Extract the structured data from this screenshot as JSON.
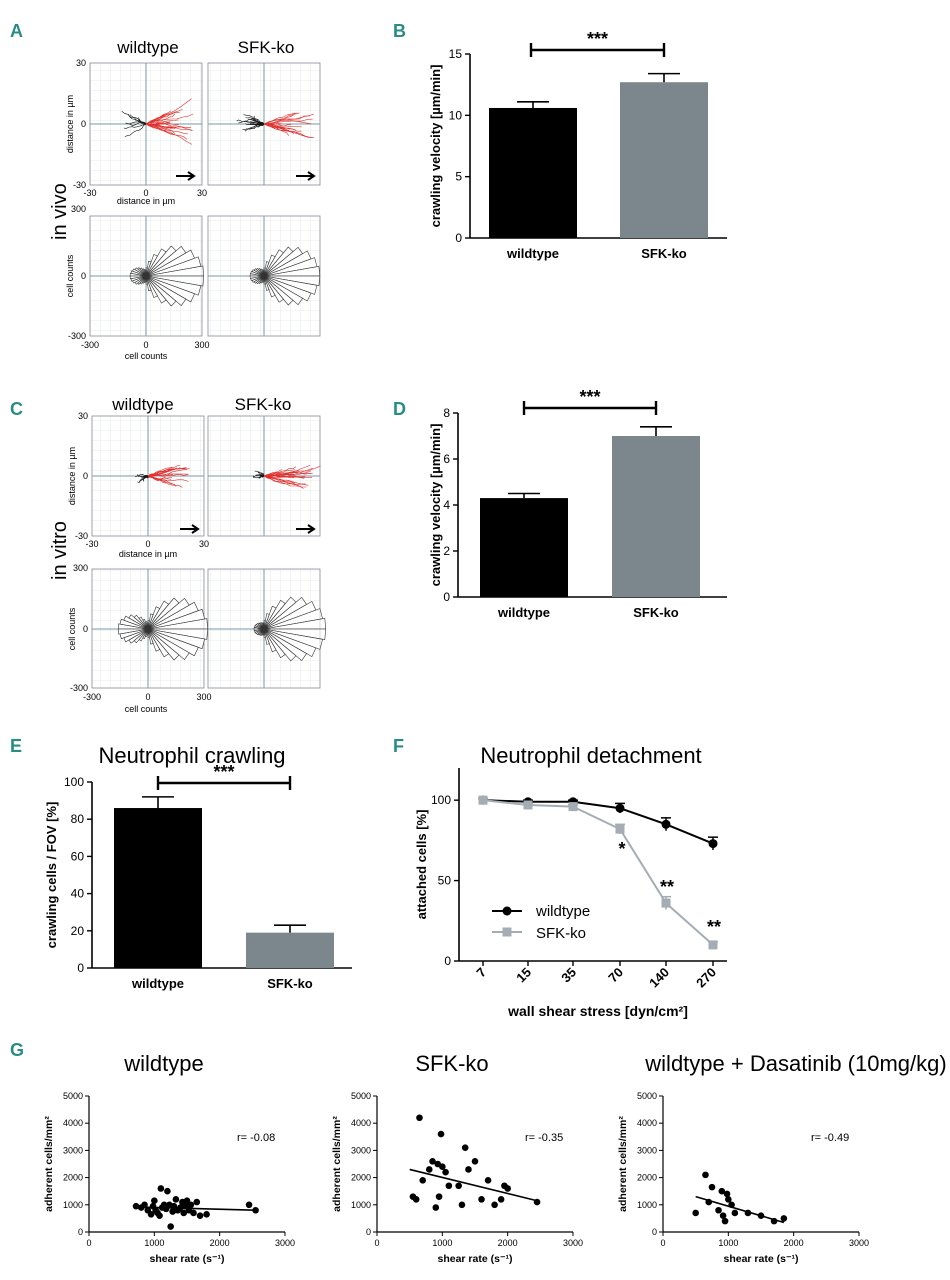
{
  "colors": {
    "wildtype": "#000000",
    "sfk": "#7b878c",
    "sfk_line": "#a4adb3",
    "red": "#e0312e",
    "teal": "#2a8c85",
    "grid": "#c8d2d2"
  },
  "panel_labels": {
    "A": "A",
    "B": "B",
    "C": "C",
    "D": "D",
    "E": "E",
    "F": "F",
    "G": "G"
  },
  "side_labels": {
    "in_vivo": "in vivo",
    "in_vitro": "in vitro"
  },
  "track_panels": {
    "col_titles": [
      "wildtype",
      "SFK-ko"
    ],
    "vivo_ticks": {
      "y_top": "30",
      "y_mid": "0",
      "y_bot": "-30",
      "x_left": "-30",
      "x_mid": "0",
      "x_right": "30"
    },
    "vivo_rose_ticks": {
      "y_top": "300",
      "y_mid": "0",
      "y_bot": "-300",
      "x_left": "-300",
      "x_mid": "0",
      "x_right": "300"
    },
    "vitro_ticks": {
      "y_top": "30",
      "y_mid": "0",
      "y_bot": "-30",
      "x_left": "-30",
      "x_mid": "0",
      "x_right": "30"
    },
    "vitro_rose_ticks": {
      "y_top": "300",
      "y_mid": "0",
      "y_bot": "-300",
      "x_left": "-300",
      "x_mid": "0",
      "x_right": "300"
    },
    "track_xlabel": "distance in µm",
    "track_ylabel": "distance in µm",
    "rose_xlabel": "cell counts",
    "rose_ylabel": "cell counts"
  },
  "chart_data": [
    {
      "id": "B",
      "type": "bar",
      "categories": [
        "wildtype",
        "SFK-ko"
      ],
      "values": [
        10.6,
        12.7
      ],
      "errors": [
        0.5,
        0.7
      ],
      "ylabel": "crawling velocity [µm/min]",
      "ylim": [
        0,
        15
      ],
      "yticks": [
        "0",
        "5",
        "10",
        "15"
      ],
      "significance": "***"
    },
    {
      "id": "D",
      "type": "bar",
      "categories": [
        "wildtype",
        "SFK-ko"
      ],
      "values": [
        4.3,
        7.0
      ],
      "errors": [
        0.2,
        0.4
      ],
      "ylabel": "crawling velocity [µm/min]",
      "ylim": [
        0,
        8
      ],
      "yticks": [
        "0",
        "2",
        "4",
        "6",
        "8"
      ],
      "significance": "***"
    },
    {
      "id": "E",
      "type": "bar",
      "title": "Neutrophil crawling",
      "categories": [
        "wildtype",
        "SFK-ko"
      ],
      "values": [
        86,
        19
      ],
      "errors": [
        6,
        4
      ],
      "ylabel": "crawling cells / FOV [%]",
      "ylim": [
        0,
        100
      ],
      "yticks": [
        "0",
        "20",
        "40",
        "60",
        "80",
        "100"
      ],
      "significance": "***"
    },
    {
      "id": "F",
      "type": "line",
      "title": "Neutrophil detachment",
      "x": [
        "7",
        "15",
        "35",
        "70",
        "140",
        "270"
      ],
      "xlabel": "wall shear stress [dyn/cm²]",
      "ylabel": "attached cells [%]",
      "ylim": [
        0,
        100
      ],
      "yticks": [
        "0",
        "50",
        "100"
      ],
      "series": [
        {
          "name": "wildtype",
          "values": [
            100,
            99,
            99,
            95,
            85,
            73
          ],
          "errors": [
            1,
            1,
            1,
            3,
            4,
            4
          ]
        },
        {
          "name": "SFK-ko",
          "values": [
            100,
            97,
            96,
            82,
            36,
            10
          ],
          "errors": [
            1,
            1,
            1,
            3,
            4,
            2
          ]
        }
      ],
      "annotations": [
        "*",
        "**",
        "**"
      ]
    },
    {
      "id": "G1",
      "type": "scatter",
      "title": "wildtype",
      "xlabel": "shear rate (s⁻¹)",
      "ylabel": "adherent cells/mm²",
      "xlim": [
        0,
        3000
      ],
      "ylim": [
        0,
        5000
      ],
      "xticks": [
        "0",
        "1000",
        "2000",
        "3000"
      ],
      "yticks": [
        "0",
        "1000",
        "2000",
        "3000",
        "4000",
        "5000"
      ],
      "r_label": "r= -0.08",
      "points": [
        [
          720,
          950
        ],
        [
          800,
          900
        ],
        [
          850,
          1000
        ],
        [
          900,
          800
        ],
        [
          950,
          650
        ],
        [
          980,
          950
        ],
        [
          1000,
          1150
        ],
        [
          1020,
          800
        ],
        [
          1050,
          700
        ],
        [
          1080,
          600
        ],
        [
          1100,
          1600
        ],
        [
          1120,
          900
        ],
        [
          1150,
          1000
        ],
        [
          1180,
          850
        ],
        [
          1200,
          1500
        ],
        [
          1230,
          1000
        ],
        [
          1250,
          200
        ],
        [
          1280,
          750
        ],
        [
          1300,
          950
        ],
        [
          1330,
          1200
        ],
        [
          1360,
          800
        ],
        [
          1400,
          900
        ],
        [
          1430,
          1100
        ],
        [
          1450,
          700
        ],
        [
          1480,
          950
        ],
        [
          1500,
          1150
        ],
        [
          1530,
          800
        ],
        [
          1560,
          1000
        ],
        [
          1600,
          700
        ],
        [
          1650,
          1100
        ],
        [
          1700,
          600
        ],
        [
          1800,
          650
        ],
        [
          2450,
          1000
        ],
        [
          2550,
          800
        ]
      ],
      "fit": [
        [
          700,
          920
        ],
        [
          2550,
          800
        ]
      ]
    },
    {
      "id": "G2",
      "type": "scatter",
      "title": "SFK-ko",
      "xlabel": "shear rate (s⁻¹)",
      "ylabel": "adherent cells/mm²",
      "xlim": [
        0,
        3000
      ],
      "ylim": [
        0,
        5000
      ],
      "xticks": [
        "0",
        "1000",
        "2000",
        "3000"
      ],
      "yticks": [
        "0",
        "1000",
        "2000",
        "3000",
        "4000",
        "5000"
      ],
      "r_label": "r= -0.35",
      "points": [
        [
          550,
          1300
        ],
        [
          600,
          1200
        ],
        [
          650,
          4200
        ],
        [
          700,
          1900
        ],
        [
          800,
          2300
        ],
        [
          850,
          2600
        ],
        [
          900,
          900
        ],
        [
          930,
          2500
        ],
        [
          950,
          1300
        ],
        [
          980,
          3600
        ],
        [
          1000,
          2400
        ],
        [
          1050,
          2200
        ],
        [
          1100,
          1700
        ],
        [
          1250,
          1700
        ],
        [
          1300,
          1000
        ],
        [
          1350,
          3100
        ],
        [
          1400,
          2300
        ],
        [
          1500,
          2600
        ],
        [
          1600,
          1200
        ],
        [
          1700,
          1900
        ],
        [
          1800,
          1000
        ],
        [
          1900,
          1200
        ],
        [
          1950,
          1700
        ],
        [
          2000,
          1600
        ],
        [
          2450,
          1100
        ]
      ],
      "fit": [
        [
          500,
          2300
        ],
        [
          2450,
          1150
        ]
      ]
    },
    {
      "id": "G3",
      "type": "scatter",
      "title": "wildtype + Dasatinib (10mg/kg)",
      "xlabel": "shear rate (s⁻¹)",
      "ylabel": "adherent cells/mm²",
      "xlim": [
        0,
        3000
      ],
      "ylim": [
        0,
        5000
      ],
      "xticks": [
        "0",
        "1000",
        "2000",
        "3000"
      ],
      "yticks": [
        "0",
        "1000",
        "2000",
        "3000",
        "4000",
        "5000"
      ],
      "r_label": "r= -0.49",
      "points": [
        [
          500,
          700
        ],
        [
          650,
          2100
        ],
        [
          700,
          1100
        ],
        [
          750,
          1650
        ],
        [
          850,
          800
        ],
        [
          900,
          1500
        ],
        [
          920,
          600
        ],
        [
          950,
          400
        ],
        [
          980,
          1400
        ],
        [
          1000,
          1200
        ],
        [
          1050,
          1000
        ],
        [
          1100,
          700
        ],
        [
          1300,
          700
        ],
        [
          1500,
          600
        ],
        [
          1700,
          400
        ],
        [
          1850,
          500
        ]
      ],
      "fit": [
        [
          500,
          1300
        ],
        [
          1850,
          350
        ]
      ]
    }
  ]
}
